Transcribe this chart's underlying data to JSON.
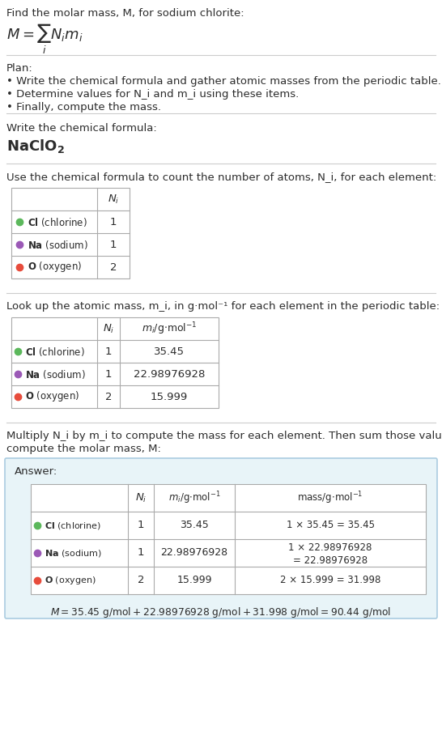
{
  "title_line": "Find the molar mass, M, for sodium chlorite:",
  "formula_display": "M = ∑ N_i m_i",
  "bg_color": "#ffffff",
  "text_color": "#2c2c2c",
  "separator_color": "#cccccc",
  "plan_header": "Plan:",
  "plan_bullets": [
    "• Write the chemical formula and gather atomic masses from the periodic table.",
    "• Determine values for N_i and m_i using these items.",
    "• Finally, compute the mass."
  ],
  "formula_section_header": "Write the chemical formula:",
  "chemical_formula": "NaClO",
  "chemical_formula_sub": "2",
  "count_section_header": "Use the chemical formula to count the number of atoms, N_i, for each element:",
  "atomic_mass_section_header": "Look up the atomic mass, m_i, in g·mol⁻¹ for each element in the periodic table:",
  "multiply_section_header": "Multiply N_i by m_i to compute the mass for each element. Then sum those values to\ncompute the molar mass, M:",
  "elements": [
    {
      "symbol": "Cl",
      "name": "chlorine",
      "color": "#5cb85c",
      "N": "1",
      "m": "35.45",
      "mass_eq": "1 × 35.45 = 35.45"
    },
    {
      "symbol": "Na",
      "name": "sodium",
      "color": "#9b59b6",
      "N": "1",
      "m": "22.98976928",
      "mass_eq": "1 × 22.98976928\n= 22.98976928"
    },
    {
      "symbol": "O",
      "name": "oxygen",
      "color": "#e74c3c",
      "N": "2",
      "m": "15.999",
      "mass_eq": "2 × 15.999 = 31.998"
    }
  ],
  "answer_bg": "#e8f4f8",
  "answer_border": "#aacce0",
  "final_eq": "M = 35.45 g/mol + 22.98976928 g/mol + 31.998 g/mol = 90.44 g/mol"
}
